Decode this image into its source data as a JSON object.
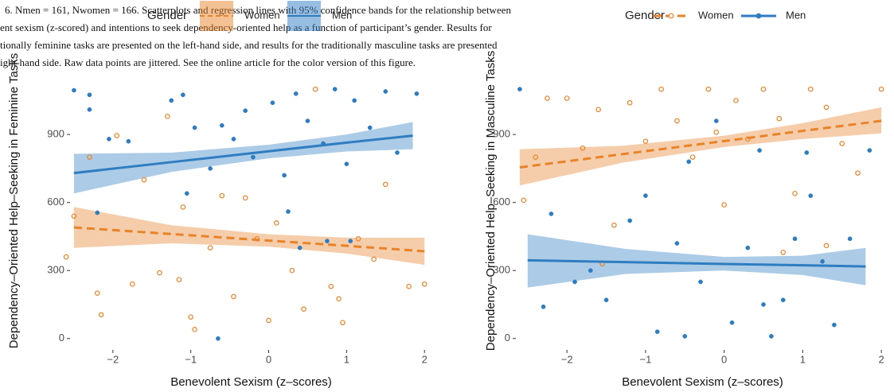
{
  "caption": {
    "lines": [
      "6.   Nmen = 161, Nwomen = 166. Scatterplots and regression lines with 95% confidence bands for the relationship between",
      "ent sexism (z-scored) and intentions to seek dependency-oriented help as a function of participant’s gender. Results for",
      "tionally feminine tasks are presented on the left-hand side, and results for the traditionally masculine tasks are presented",
      "ight-hand side. Raw data points are jittered. See the online article for the color version of this figure."
    ]
  },
  "chart_data": [
    {
      "type": "scatter",
      "x_label": "Benevolent Sexism (z–scores)",
      "y_label": "Dependency–Oriented Help–Seeking in Feminine Tasks",
      "legend_title": "Gender",
      "legend_style": "band",
      "xlim": [
        -2.55,
        2.1
      ],
      "ylim": [
        -50,
        1125
      ],
      "xticks": [
        {
          "value": -2,
          "label": "−2"
        },
        {
          "value": -1,
          "label": "−1"
        },
        0,
        1,
        2
      ],
      "yticks": [
        0,
        300,
        600,
        900
      ],
      "series": [
        {
          "name": "Women",
          "color": "#e8832a",
          "marker": "open",
          "line_style": "dashed",
          "x": [
            -2.6,
            -2.5,
            -2.3,
            -2.2,
            -2.15,
            -1.95,
            -1.75,
            -1.6,
            -1.4,
            -1.3,
            -1.15,
            -1.0,
            -0.95,
            -0.75,
            -0.6,
            -0.45,
            -0.3,
            -0.15,
            0.0,
            0.1,
            0.3,
            0.45,
            0.6,
            0.8,
            0.95,
            1.15,
            1.35,
            1.5,
            1.8,
            2.0,
            -1.1,
            0.9
          ],
          "y": [
            360,
            540,
            800,
            200,
            105,
            895,
            240,
            700,
            290,
            980,
            260,
            95,
            40,
            400,
            630,
            185,
            620,
            440,
            80,
            510,
            300,
            130,
            1100,
            230,
            70,
            440,
            350,
            680,
            230,
            240,
            580,
            175
          ],
          "fit": {
            "x": [
              -2.5,
              -1.25,
              0,
              1,
              2
            ],
            "y": [
              490,
              461,
              432,
              409,
              385
            ],
            "lower": [
              400,
              420,
              405,
              375,
              325
            ],
            "upper": [
              580,
              500,
              460,
              445,
              445
            ]
          }
        },
        {
          "name": "Men",
          "color": "#2f7dc1",
          "marker": "filled",
          "line_style": "solid",
          "x": [
            -2.5,
            -2.3,
            -2.3,
            -2.05,
            -1.8,
            -1.25,
            -1.1,
            -1.05,
            -0.95,
            -0.75,
            -0.6,
            -0.45,
            -0.3,
            -0.2,
            0.05,
            0.2,
            0.35,
            0.5,
            0.7,
            0.85,
            1.0,
            1.1,
            1.3,
            1.5,
            1.65,
            1.9,
            -0.65,
            0.4,
            0.75,
            -2.2,
            1.05,
            0.25
          ],
          "y": [
            1095,
            1010,
            1075,
            880,
            870,
            1050,
            1075,
            640,
            930,
            750,
            940,
            880,
            1005,
            800,
            1040,
            720,
            1080,
            960,
            860,
            1100,
            770,
            1050,
            930,
            1090,
            820,
            1080,
            0,
            400,
            430,
            555,
            430,
            560
          ],
          "fit": {
            "x": [
              -2.5,
              -1.25,
              0,
              1,
              1.85
            ],
            "y": [
              730,
              778,
              826,
              864,
              895
            ],
            "lower": [
              640,
              735,
              795,
              825,
              835
            ],
            "upper": [
              815,
              820,
              855,
              900,
              955
            ]
          }
        }
      ]
    },
    {
      "type": "scatter",
      "x_label": "Benevolent Sexism (z–scores)",
      "y_label": "Dependency–Oriented Help–Seeking in Masculine Tasks",
      "legend_title": "Gender",
      "legend_style": "line",
      "xlim": [
        -2.65,
        2.1
      ],
      "ylim": [
        -50,
        1125
      ],
      "xticks": [
        {
          "value": -2,
          "label": "−2"
        },
        {
          "value": -1,
          "label": "−1"
        },
        0,
        1,
        2
      ],
      "yticks": [
        0,
        300,
        600,
        900
      ],
      "series": [
        {
          "name": "Women",
          "color": "#e8832a",
          "marker": "open",
          "line_style": "dashed",
          "x": [
            -2.55,
            -2.4,
            -2.25,
            -2.0,
            -1.8,
            -1.6,
            -1.4,
            -1.2,
            -1.0,
            -0.8,
            -0.6,
            -0.4,
            -0.2,
            0.0,
            0.15,
            0.3,
            0.5,
            0.7,
            0.9,
            1.1,
            1.3,
            1.5,
            1.7,
            2.0,
            -1.55,
            0.75,
            1.3,
            -0.1
          ],
          "y": [
            610,
            800,
            1060,
            1060,
            840,
            1010,
            500,
            1040,
            870,
            1100,
            960,
            800,
            1100,
            590,
            1050,
            880,
            1100,
            970,
            640,
            1100,
            1020,
            860,
            730,
            1100,
            330,
            380,
            410,
            910
          ],
          "fit": {
            "x": [
              -2.6,
              -1.3,
              0,
              1,
              2
            ],
            "y": [
              755,
              813,
              871,
              916,
              960
            ],
            "lower": [
              675,
              775,
              845,
              880,
              905
            ],
            "upper": [
              835,
              850,
              895,
              950,
              1020
            ]
          }
        },
        {
          "name": "Men",
          "color": "#2f7dc1",
          "marker": "filled",
          "line_style": "solid",
          "x": [
            -2.6,
            -2.3,
            -2.2,
            -1.9,
            -1.7,
            -1.5,
            -1.2,
            -1.0,
            -0.85,
            -0.6,
            -0.45,
            -0.3,
            -0.1,
            0.1,
            0.3,
            0.45,
            0.6,
            0.75,
            0.9,
            1.05,
            1.25,
            1.4,
            1.6,
            1.85,
            -0.5,
            0.5,
            1.1
          ],
          "y": [
            1100,
            140,
            550,
            250,
            300,
            170,
            520,
            630,
            30,
            420,
            780,
            250,
            960,
            70,
            400,
            830,
            10,
            170,
            440,
            820,
            340,
            60,
            440,
            830,
            10,
            150,
            630
          ],
          "fit": {
            "x": [
              -2.5,
              -1.25,
              0,
              1,
              1.8
            ],
            "y": [
              345,
              337,
              329,
              323,
              318
            ],
            "lower": [
              225,
              285,
              300,
              280,
              235
            ],
            "upper": [
              460,
              395,
              360,
              365,
              400
            ]
          }
        }
      ]
    }
  ]
}
